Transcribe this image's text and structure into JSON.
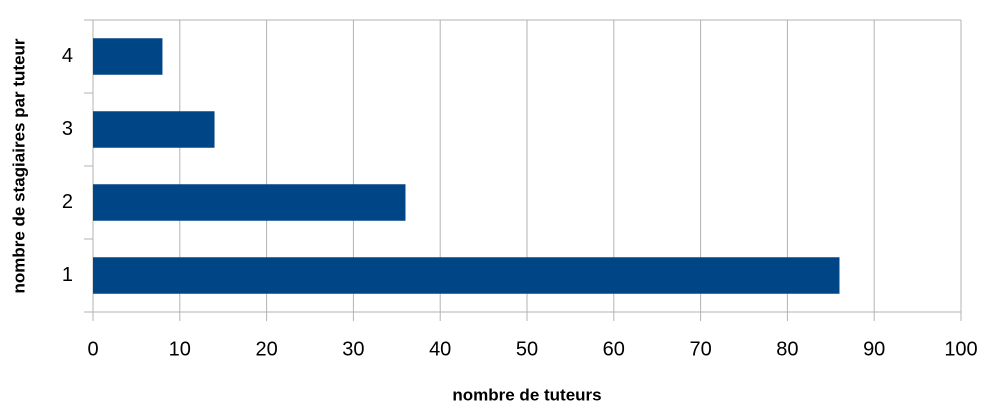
{
  "chart_data": {
    "type": "bar",
    "orientation": "horizontal",
    "xlabel": "nombre de tuteurs",
    "ylabel": "nombre de stagiaires par tuteur",
    "categories": [
      "1",
      "2",
      "3",
      "4"
    ],
    "values": [
      86,
      36,
      14,
      8
    ],
    "color": "#004586",
    "xlim": [
      0,
      100
    ],
    "xticks": [
      0,
      10,
      20,
      30,
      40,
      50,
      60,
      70,
      80,
      90,
      100
    ],
    "grid": true
  }
}
